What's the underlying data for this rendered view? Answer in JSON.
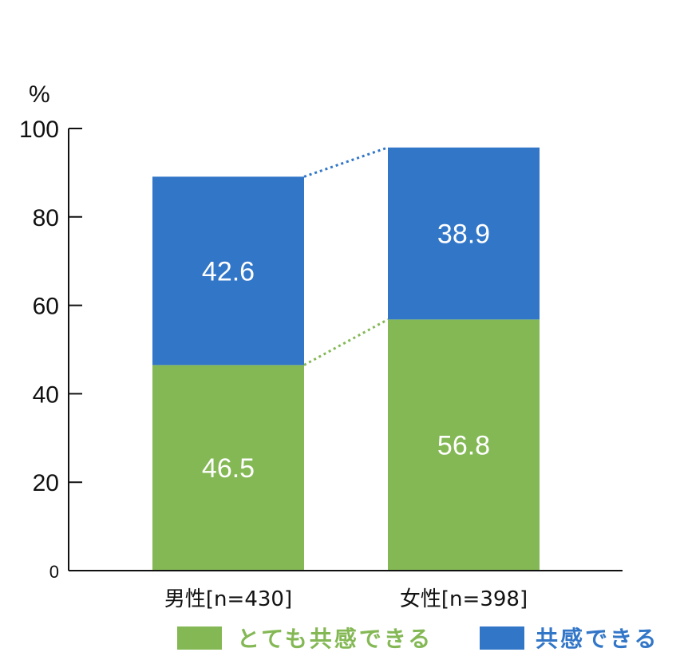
{
  "chart_data": {
    "type": "bar",
    "stacked": true,
    "unit_label": "%",
    "categories": [
      "男性[n=430]",
      "女性[n=398]"
    ],
    "series": [
      {
        "name": "とても共感できる",
        "values": [
          46.5,
          56.8
        ],
        "color": "#84b855"
      },
      {
        "name": "共感できる",
        "values": [
          42.6,
          38.9
        ],
        "color": "#3276c8"
      }
    ],
    "ylim": [
      0,
      100
    ],
    "yticks": [
      0,
      20,
      40,
      60,
      80,
      100
    ],
    "grid": false,
    "connector_lines": true,
    "legend_position": "bottom"
  }
}
